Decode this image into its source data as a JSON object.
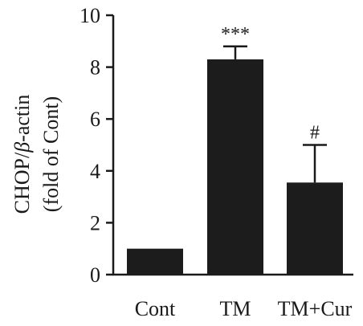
{
  "chart_data": {
    "type": "bar",
    "categories": [
      "Cont",
      "TM",
      "TM+Cur"
    ],
    "values": [
      1.0,
      8.3,
      3.55
    ],
    "errors": [
      0,
      0.5,
      1.45
    ],
    "annotations": [
      "",
      "***",
      "#"
    ],
    "ylabel_line1_prefix": "CHOP/",
    "ylabel_line1_italic": "β",
    "ylabel_line1_suffix": "-actin",
    "ylabel_line2": "(fold of Cont)",
    "ylim": [
      0,
      10
    ],
    "yticks": [
      0,
      2,
      4,
      6,
      8,
      10
    ],
    "grid": false,
    "colors": {
      "bar": "#1c1c1c",
      "axis": "#1a1a1a"
    }
  }
}
